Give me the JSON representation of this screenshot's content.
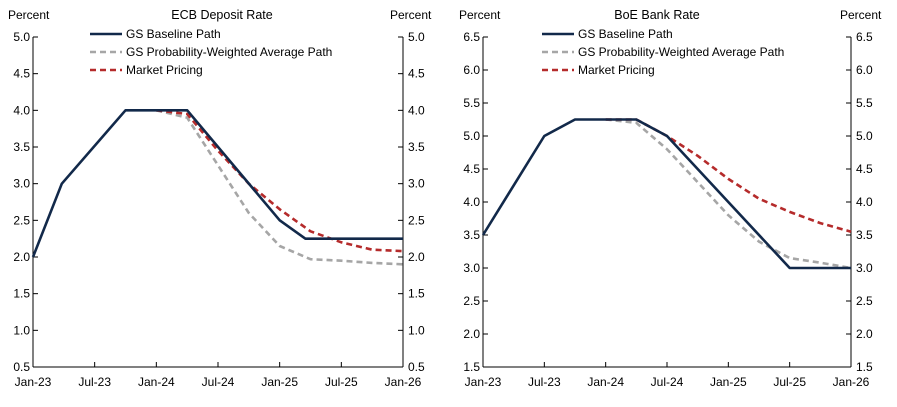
{
  "colors": {
    "baseline": "#12294a",
    "probability": "#a6a6a6",
    "market": "#b52b2b"
  },
  "chart_data": [
    {
      "type": "line",
      "title": "ECB Deposit Rate",
      "ylabel_left": "Percent",
      "ylabel_right": "Percent",
      "ylim": [
        0.5,
        5.0
      ],
      "yticks": [
        "0.5",
        "1.0",
        "1.5",
        "2.0",
        "2.5",
        "3.0",
        "3.5",
        "4.0",
        "4.5",
        "5.0"
      ],
      "xticks": [
        "Jan-23",
        "Jul-23",
        "Jan-24",
        "Jul-24",
        "Jan-25",
        "Jul-25",
        "Jan-26"
      ],
      "x_range_months": [
        0,
        36
      ],
      "series": [
        {
          "name": "GS Baseline Path",
          "style": "solid",
          "color_key": "baseline",
          "points": [
            [
              0,
              2.0
            ],
            [
              2.8,
              3.0
            ],
            [
              9,
              4.0
            ],
            [
              15,
              4.0
            ],
            [
              24,
              2.5
            ],
            [
              26.5,
              2.25
            ],
            [
              36,
              2.25
            ]
          ]
        },
        {
          "name": "GS Probability-Weighted Average Path",
          "style": "dashed",
          "color_key": "probability",
          "points": [
            [
              12,
              4.0
            ],
            [
              15,
              3.9
            ],
            [
              18,
              3.25
            ],
            [
              21,
              2.6
            ],
            [
              24,
              2.15
            ],
            [
              27,
              1.97
            ],
            [
              30,
              1.95
            ],
            [
              33,
              1.92
            ],
            [
              36,
              1.9
            ]
          ]
        },
        {
          "name": "Market Pricing",
          "style": "dashed",
          "color_key": "market",
          "points": [
            [
              12,
              4.0
            ],
            [
              15,
              3.95
            ],
            [
              18,
              3.45
            ],
            [
              21,
              3.0
            ],
            [
              24,
              2.65
            ],
            [
              27,
              2.35
            ],
            [
              30,
              2.2
            ],
            [
              33,
              2.1
            ],
            [
              36,
              2.08
            ]
          ]
        }
      ]
    },
    {
      "type": "line",
      "title": "BoE Bank Rate",
      "ylabel_left": "Percent",
      "ylabel_right": "Percent",
      "ylim": [
        1.5,
        6.5
      ],
      "yticks": [
        "1.5",
        "2.0",
        "2.5",
        "3.0",
        "3.5",
        "4.0",
        "4.5",
        "5.0",
        "5.5",
        "6.0",
        "6.5"
      ],
      "xticks": [
        "Jan-23",
        "Jul-23",
        "Jan-24",
        "Jul-24",
        "Jan-25",
        "Jul-25",
        "Jan-26"
      ],
      "x_range_months": [
        0,
        36
      ],
      "series": [
        {
          "name": "GS Baseline Path",
          "style": "solid",
          "color_key": "baseline",
          "points": [
            [
              0,
              3.5
            ],
            [
              6,
              5.0
            ],
            [
              9,
              5.25
            ],
            [
              15,
              5.25
            ],
            [
              18,
              5.0
            ],
            [
              24,
              4.0
            ],
            [
              30,
              3.0
            ],
            [
              36,
              3.0
            ]
          ]
        },
        {
          "name": "GS Probability-Weighted Average Path",
          "style": "dashed",
          "color_key": "probability",
          "points": [
            [
              12,
              5.25
            ],
            [
              15,
              5.2
            ],
            [
              18,
              4.8
            ],
            [
              21,
              4.3
            ],
            [
              24,
              3.8
            ],
            [
              27,
              3.4
            ],
            [
              30,
              3.15
            ],
            [
              33,
              3.08
            ],
            [
              36,
              3.0
            ]
          ]
        },
        {
          "name": "Market Pricing",
          "style": "dashed",
          "color_key": "market",
          "points": [
            [
              12,
              5.25
            ],
            [
              15,
              5.25
            ],
            [
              18,
              5.0
            ],
            [
              21,
              4.7
            ],
            [
              24,
              4.35
            ],
            [
              27,
              4.05
            ],
            [
              30,
              3.85
            ],
            [
              33,
              3.68
            ],
            [
              36,
              3.55
            ]
          ]
        }
      ]
    }
  ]
}
